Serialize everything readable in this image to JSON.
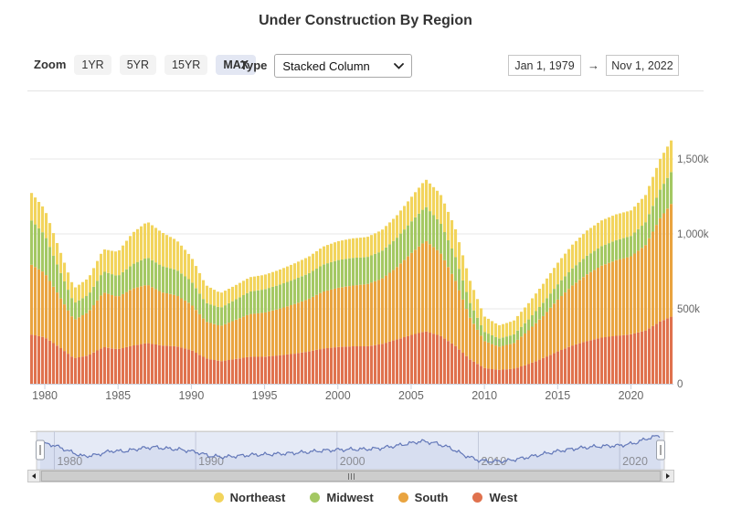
{
  "title": "Under Construction By Region",
  "toolbar": {
    "zoom_label": "Zoom",
    "zoom_buttons": [
      {
        "label": "1YR",
        "selected": false
      },
      {
        "label": "5YR",
        "selected": false
      },
      {
        "label": "15YR",
        "selected": false
      },
      {
        "label": "MAX",
        "selected": true
      }
    ],
    "type_label": "Type",
    "type_value": "Stacked Column",
    "date_from": "Jan 1, 1979",
    "date_arrow": "→",
    "date_to": "Nov 1, 2022"
  },
  "chart_data": {
    "type": "bar",
    "stacked": true,
    "title": "Under Construction By Region",
    "unit": "housing units under construction, thousands (k)",
    "x_range": [
      "Jan 1, 1979",
      "Nov 1, 2022"
    ],
    "ylim": [
      0,
      1860
    ],
    "grid": "horizontal",
    "legend_position": "bottom",
    "y_ticks": [
      {
        "value": 0,
        "label": "0"
      },
      {
        "value": 500,
        "label": "500k"
      },
      {
        "value": 1000,
        "label": "1,000k"
      },
      {
        "value": 1500,
        "label": "1,500k"
      }
    ],
    "x_tick_years": [
      1980,
      1985,
      1990,
      1995,
      2000,
      2005,
      2010,
      2015,
      2020
    ],
    "stack_order_bottom_to_top": [
      "West",
      "South",
      "Midwest",
      "Northeast"
    ],
    "anchor_years": [
      1979,
      1980,
      1981,
      1982,
      1983,
      1984,
      1985,
      1986,
      1987,
      1988,
      1989,
      1990,
      1991,
      1992,
      1993,
      1994,
      1995,
      1996,
      1997,
      1998,
      1999,
      2000,
      2001,
      2002,
      2003,
      2004,
      2005,
      2006,
      2007,
      2008,
      2009,
      2010,
      2011,
      2012,
      2013,
      2014,
      2015,
      2016,
      2017,
      2018,
      2019,
      2020,
      2021,
      2022,
      2022.9
    ],
    "series": [
      {
        "name": "West",
        "color": "#E0724E",
        "values": [
          330,
          310,
          245,
          170,
          190,
          245,
          230,
          255,
          272,
          255,
          250,
          225,
          170,
          150,
          165,
          180,
          180,
          190,
          200,
          215,
          235,
          245,
          250,
          250,
          265,
          295,
          325,
          350,
          320,
          255,
          165,
          105,
          92,
          100,
          130,
          170,
          215,
          255,
          285,
          308,
          320,
          330,
          355,
          415,
          458
        ]
      },
      {
        "name": "South",
        "color": "#E9A440",
        "values": [
          470,
          430,
          340,
          255,
          290,
          365,
          350,
          380,
          390,
          355,
          340,
          305,
          245,
          235,
          260,
          285,
          295,
          310,
          330,
          350,
          380,
          395,
          405,
          415,
          435,
          480,
          545,
          605,
          555,
          440,
          280,
          180,
          155,
          170,
          225,
          280,
          345,
          400,
          445,
          480,
          505,
          520,
          570,
          690,
          774
        ]
      },
      {
        "name": "Midwest",
        "color": "#A4C863",
        "values": [
          300,
          255,
          175,
          112,
          115,
          140,
          138,
          162,
          182,
          175,
          170,
          155,
          125,
          122,
          135,
          150,
          155,
          160,
          165,
          170,
          180,
          185,
          185,
          180,
          185,
          195,
          210,
          228,
          200,
          160,
          100,
          62,
          55,
          58,
          72,
          88,
          102,
          114,
          124,
          130,
          133,
          136,
          152,
          190,
          220
        ]
      },
      {
        "name": "Northeast",
        "color": "#F2D45C",
        "values": [
          185,
          170,
          138,
          100,
          112,
          148,
          162,
          210,
          238,
          225,
          198,
          162,
          118,
          98,
          96,
          96,
          97,
          100,
          106,
          112,
          120,
          126,
          130,
          134,
          140,
          150,
          163,
          182,
          192,
          188,
          150,
          103,
          88,
          92,
          108,
          126,
          144,
          158,
          168,
          172,
          173,
          170,
          182,
          205,
          213
        ]
      }
    ]
  },
  "navigator": {
    "decade_labels": [
      "1980",
      "1990",
      "2000",
      "2010",
      "2020"
    ],
    "decade_years": [
      1980,
      1990,
      2000,
      2010,
      2020
    ],
    "line_color": "#6277b8",
    "mask_color": "#e5eaf6"
  },
  "legend": {
    "items": [
      {
        "label": "Northeast",
        "color": "#F2D45C"
      },
      {
        "label": "Midwest",
        "color": "#A4C863"
      },
      {
        "label": "South",
        "color": "#E9A440"
      },
      {
        "label": "West",
        "color": "#E0724E"
      }
    ]
  }
}
